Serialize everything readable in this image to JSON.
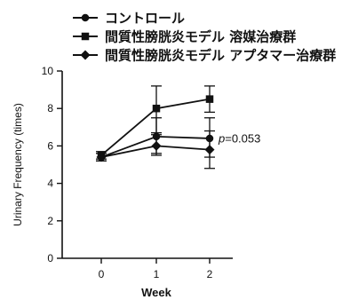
{
  "chart_data": {
    "type": "line",
    "x": [
      0,
      1,
      2
    ],
    "xticks": [
      "0",
      "1",
      "2"
    ],
    "xlabel": "Week",
    "ylabel": "Urinary Frequency (times)",
    "ylim": [
      0,
      10
    ],
    "yticks": [
      "0",
      "2",
      "4",
      "6",
      "8",
      "10"
    ],
    "grid": false,
    "legend_position": "top-left",
    "series": [
      {
        "name": "コントロール",
        "marker": "circle",
        "values": [
          5.4,
          6.5,
          6.4
        ],
        "err_low": [
          0.2,
          0.9,
          1.0
        ],
        "err_high": [
          0.2,
          1.0,
          1.1
        ]
      },
      {
        "name": "間質性膀胱炎モデル 溶媒治療群",
        "marker": "square",
        "values": [
          5.5,
          8.0,
          8.5
        ],
        "err_low": [
          0.2,
          1.3,
          0.7
        ],
        "err_high": [
          0.2,
          1.2,
          0.7
        ]
      },
      {
        "name": "間質性膀胱炎モデル アプタマー治療群",
        "marker": "diamond",
        "values": [
          5.4,
          6.0,
          5.8
        ],
        "err_low": [
          0.2,
          0.5,
          1.0
        ],
        "err_high": [
          0.2,
          0.6,
          1.0
        ]
      }
    ],
    "annotations": [
      {
        "text": "p=0.053"
      }
    ]
  },
  "colors": {
    "ink": "#111111",
    "background": "#ffffff"
  }
}
